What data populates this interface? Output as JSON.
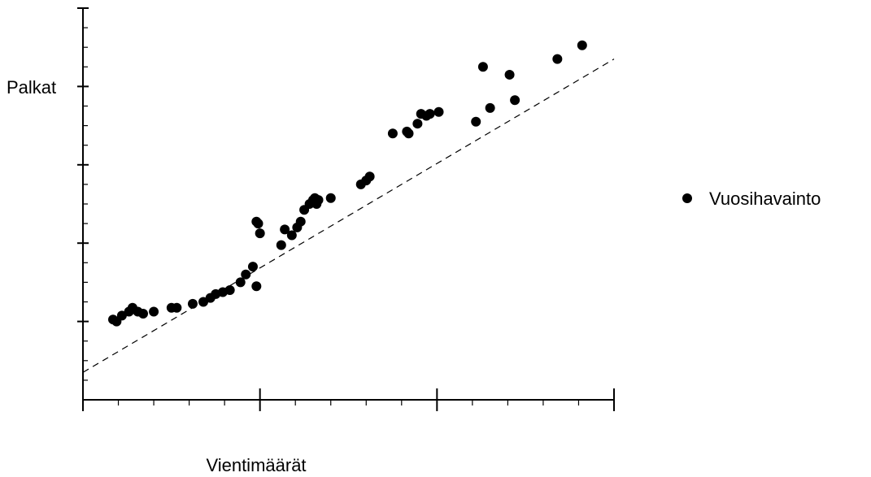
{
  "chart_data": {
    "type": "scatter",
    "xlabel": "Vientimäärät",
    "ylabel": "Palkat",
    "xlim": [
      0,
      15
    ],
    "ylim": [
      0,
      10
    ],
    "grid": false,
    "legend": {
      "placement": "right",
      "entries": [
        "Vuosihavainto"
      ]
    },
    "trendline": {
      "style": "dashed",
      "x": [
        0,
        15
      ],
      "y": [
        0.7,
        8.7
      ]
    },
    "series": [
      {
        "name": "Vuosihavainto",
        "x": [
          0.85,
          0.95,
          1.1,
          1.3,
          1.4,
          1.55,
          1.7,
          2.0,
          2.5,
          2.65,
          3.1,
          3.4,
          3.6,
          3.75,
          3.95,
          4.15,
          4.45,
          4.6,
          4.8,
          4.9,
          4.95,
          4.9,
          5.0,
          5.6,
          5.7,
          5.9,
          6.05,
          6.15,
          6.25,
          6.4,
          6.5,
          6.55,
          6.6,
          6.65,
          7.0,
          7.85,
          8.0,
          8.1,
          8.75,
          9.15,
          9.2,
          9.45,
          9.55,
          9.7,
          9.8,
          10.05,
          11.3,
          11.5,
          11.1,
          12.05,
          12.2,
          13.4,
          14.1
        ],
        "y": [
          2.05,
          2.0,
          2.15,
          2.25,
          2.35,
          2.25,
          2.2,
          2.25,
          2.35,
          2.35,
          2.45,
          2.5,
          2.6,
          2.7,
          2.75,
          2.8,
          3.0,
          3.2,
          3.4,
          2.9,
          4.5,
          4.55,
          4.25,
          3.95,
          4.35,
          4.2,
          4.4,
          4.55,
          4.85,
          5.0,
          5.1,
          5.15,
          5.0,
          5.1,
          5.15,
          5.5,
          5.6,
          5.7,
          6.8,
          6.85,
          6.8,
          7.05,
          7.3,
          7.25,
          7.3,
          7.35,
          8.5,
          7.45,
          7.1,
          8.3,
          7.65,
          8.7,
          9.05
        ]
      }
    ]
  }
}
